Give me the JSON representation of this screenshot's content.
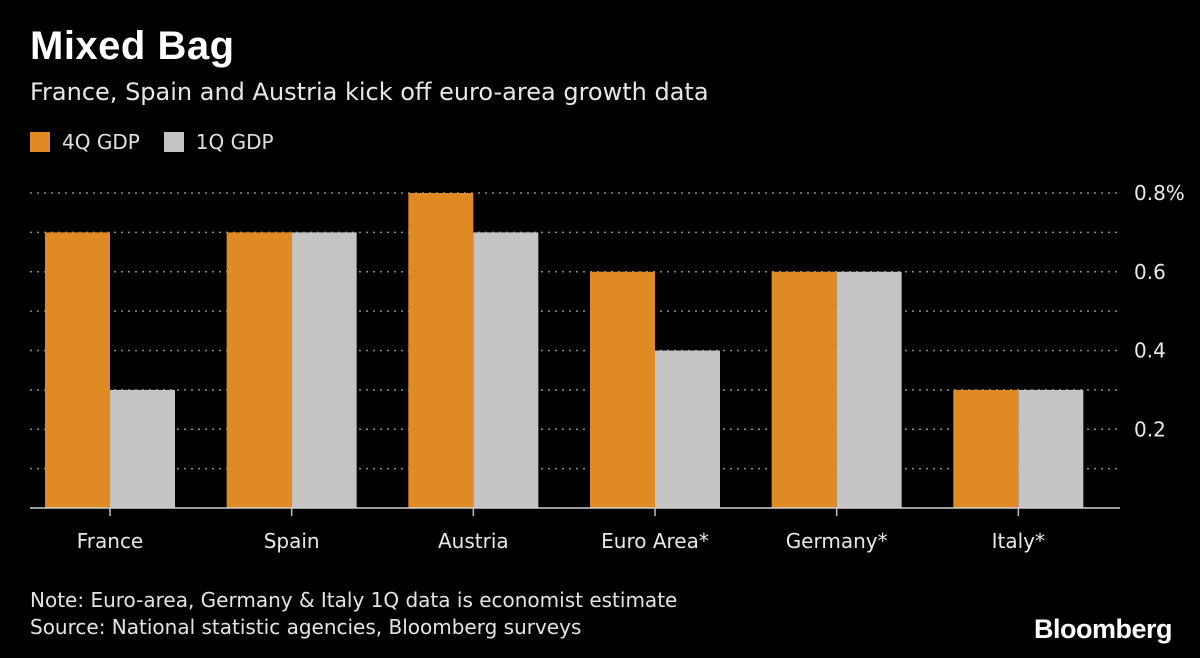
{
  "header": {
    "title": "Mixed Bag",
    "subtitle": "France, Spain and Austria kick off euro-area growth data"
  },
  "legend": {
    "items": [
      {
        "label": "4Q GDP",
        "color": "#E08A24"
      },
      {
        "label": "1Q GDP",
        "color": "#C4C4C4"
      }
    ]
  },
  "footer": {
    "note": "Note: Euro-area, Germany & Italy 1Q data is economist estimate",
    "source": "Source: National statistic agencies, Bloomberg surveys",
    "brand": "Bloomberg"
  },
  "chart_data": {
    "type": "bar",
    "title": "Mixed Bag",
    "subtitle": "France, Spain and Austria kick off euro-area growth data",
    "categories": [
      "France",
      "Spain",
      "Austria",
      "Euro Area*",
      "Germany*",
      "Italy*"
    ],
    "series": [
      {
        "name": "4Q GDP",
        "color": "#E08A24",
        "values": [
          0.7,
          0.7,
          0.8,
          0.6,
          0.6,
          0.3
        ]
      },
      {
        "name": "1Q GDP",
        "color": "#C4C4C4",
        "values": [
          0.3,
          0.7,
          0.7,
          0.4,
          0.6,
          0.3
        ]
      }
    ],
    "ylim": [
      0,
      0.8
    ],
    "yticks": [
      0.2,
      0.4,
      0.6,
      0.8
    ],
    "ytick_labels": [
      "0.2",
      "0.4",
      "0.6",
      "0.8%"
    ],
    "grid": true,
    "grid_style": "dotted",
    "yaxis_position": "right",
    "legend_position": "top-left"
  }
}
